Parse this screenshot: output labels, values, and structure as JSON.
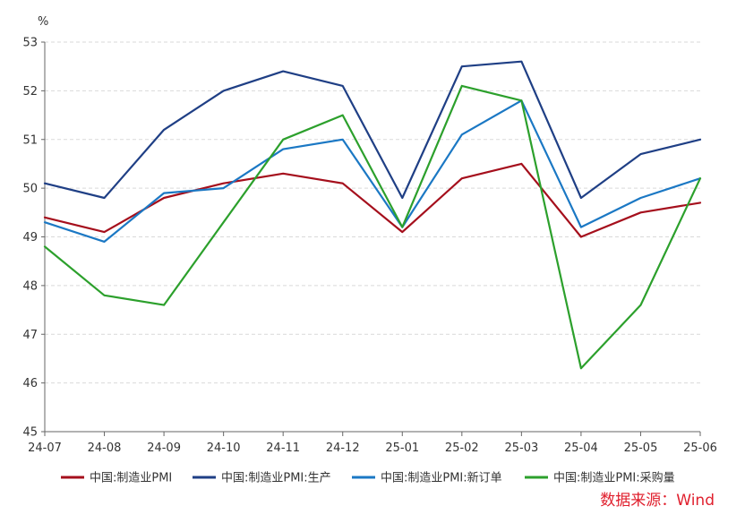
{
  "chart_data": {
    "type": "line",
    "unit": "%",
    "categories": [
      "24-07",
      "24-08",
      "24-09",
      "24-10",
      "24-11",
      "24-12",
      "25-01",
      "25-02",
      "25-03",
      "25-04",
      "25-05",
      "25-06"
    ],
    "ylim": [
      45,
      53
    ],
    "yticks": [
      45,
      46,
      47,
      48,
      49,
      50,
      51,
      52,
      53
    ],
    "grid": true,
    "legend_position": "bottom",
    "series": [
      {
        "name": "中国:制造业PMI",
        "color": "#a50f1c",
        "values": [
          49.4,
          49.1,
          49.8,
          50.1,
          50.3,
          50.1,
          49.1,
          50.2,
          50.5,
          49.0,
          49.5,
          49.7
        ]
      },
      {
        "name": "中国:制造业PMI:生产",
        "color": "#1f3f85",
        "values": [
          50.1,
          49.8,
          51.2,
          52.0,
          52.4,
          52.1,
          49.8,
          52.5,
          52.6,
          49.8,
          50.7,
          51.0
        ]
      },
      {
        "name": "中国:制造业PMI:新订单",
        "color": "#1b78c4",
        "values": [
          49.3,
          48.9,
          49.9,
          50.0,
          50.8,
          51.0,
          49.2,
          51.1,
          51.8,
          49.2,
          49.8,
          50.2
        ]
      },
      {
        "name": "中国:制造业PMI:采购量",
        "color": "#2ca02c",
        "values": [
          48.8,
          47.8,
          47.6,
          49.3,
          51.0,
          51.5,
          49.2,
          52.1,
          51.8,
          46.3,
          47.6,
          50.2
        ]
      }
    ]
  },
  "source_note": {
    "text": "数据来源：Wind",
    "color": "#e0202e"
  }
}
